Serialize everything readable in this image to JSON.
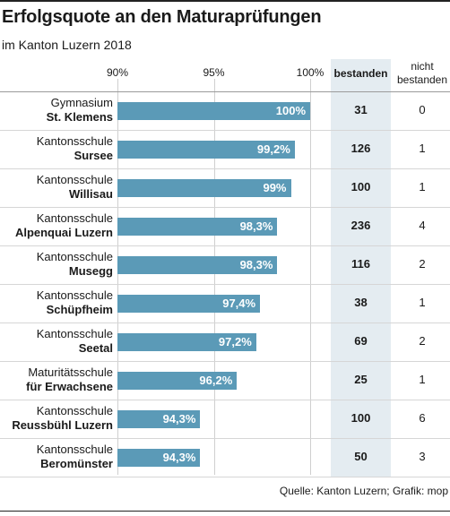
{
  "header": {
    "title": "Erfolgsquote an den Maturaprüfungen",
    "subtitle": "im Kanton Luzern 2018"
  },
  "columns": {
    "passed": "bestanden",
    "failed_line1": "nicht",
    "failed_line2": "bestanden"
  },
  "source": "Quelle: Kanton Luzern; Grafik: mop",
  "chart_data": {
    "type": "bar",
    "orientation": "horizontal",
    "title": "Erfolgsquote an den Maturaprüfungen",
    "subtitle": "im Kanton Luzern 2018",
    "xlim": [
      90,
      100
    ],
    "xticks": [
      "90%",
      "95%",
      "100%"
    ],
    "grid": true,
    "categories": [
      [
        "Gymnasium",
        "St. Klemens"
      ],
      [
        "Kantonsschule",
        "Sursee"
      ],
      [
        "Kantonsschule",
        "Willisau"
      ],
      [
        "Kantonsschule",
        "Alpenquai Luzern"
      ],
      [
        "Kantonsschule",
        "Musegg"
      ],
      [
        "Kantonsschule",
        "Schüpfheim"
      ],
      [
        "Kantonsschule",
        "Seetal"
      ],
      [
        "Maturitätsschule",
        "für Erwachsene"
      ],
      [
        "Kantonsschule",
        "Reussbühl Luzern"
      ],
      [
        "Kantonsschule",
        "Beromünster"
      ]
    ],
    "values": [
      100,
      99.2,
      99,
      98.3,
      98.3,
      97.4,
      97.2,
      96.2,
      94.3,
      94.3
    ],
    "value_labels": [
      "100%",
      "99,2%",
      "99%",
      "98,3%",
      "98,3%",
      "97,4%",
      "97,2%",
      "96,2%",
      "94,3%",
      "94,3%"
    ],
    "passed": [
      31,
      126,
      100,
      236,
      116,
      38,
      69,
      25,
      100,
      50
    ],
    "failed": [
      0,
      1,
      1,
      4,
      2,
      1,
      2,
      1,
      6,
      3
    ],
    "bar_color": "#5b9ab7",
    "column_highlight_color": "#e4ecf1"
  }
}
